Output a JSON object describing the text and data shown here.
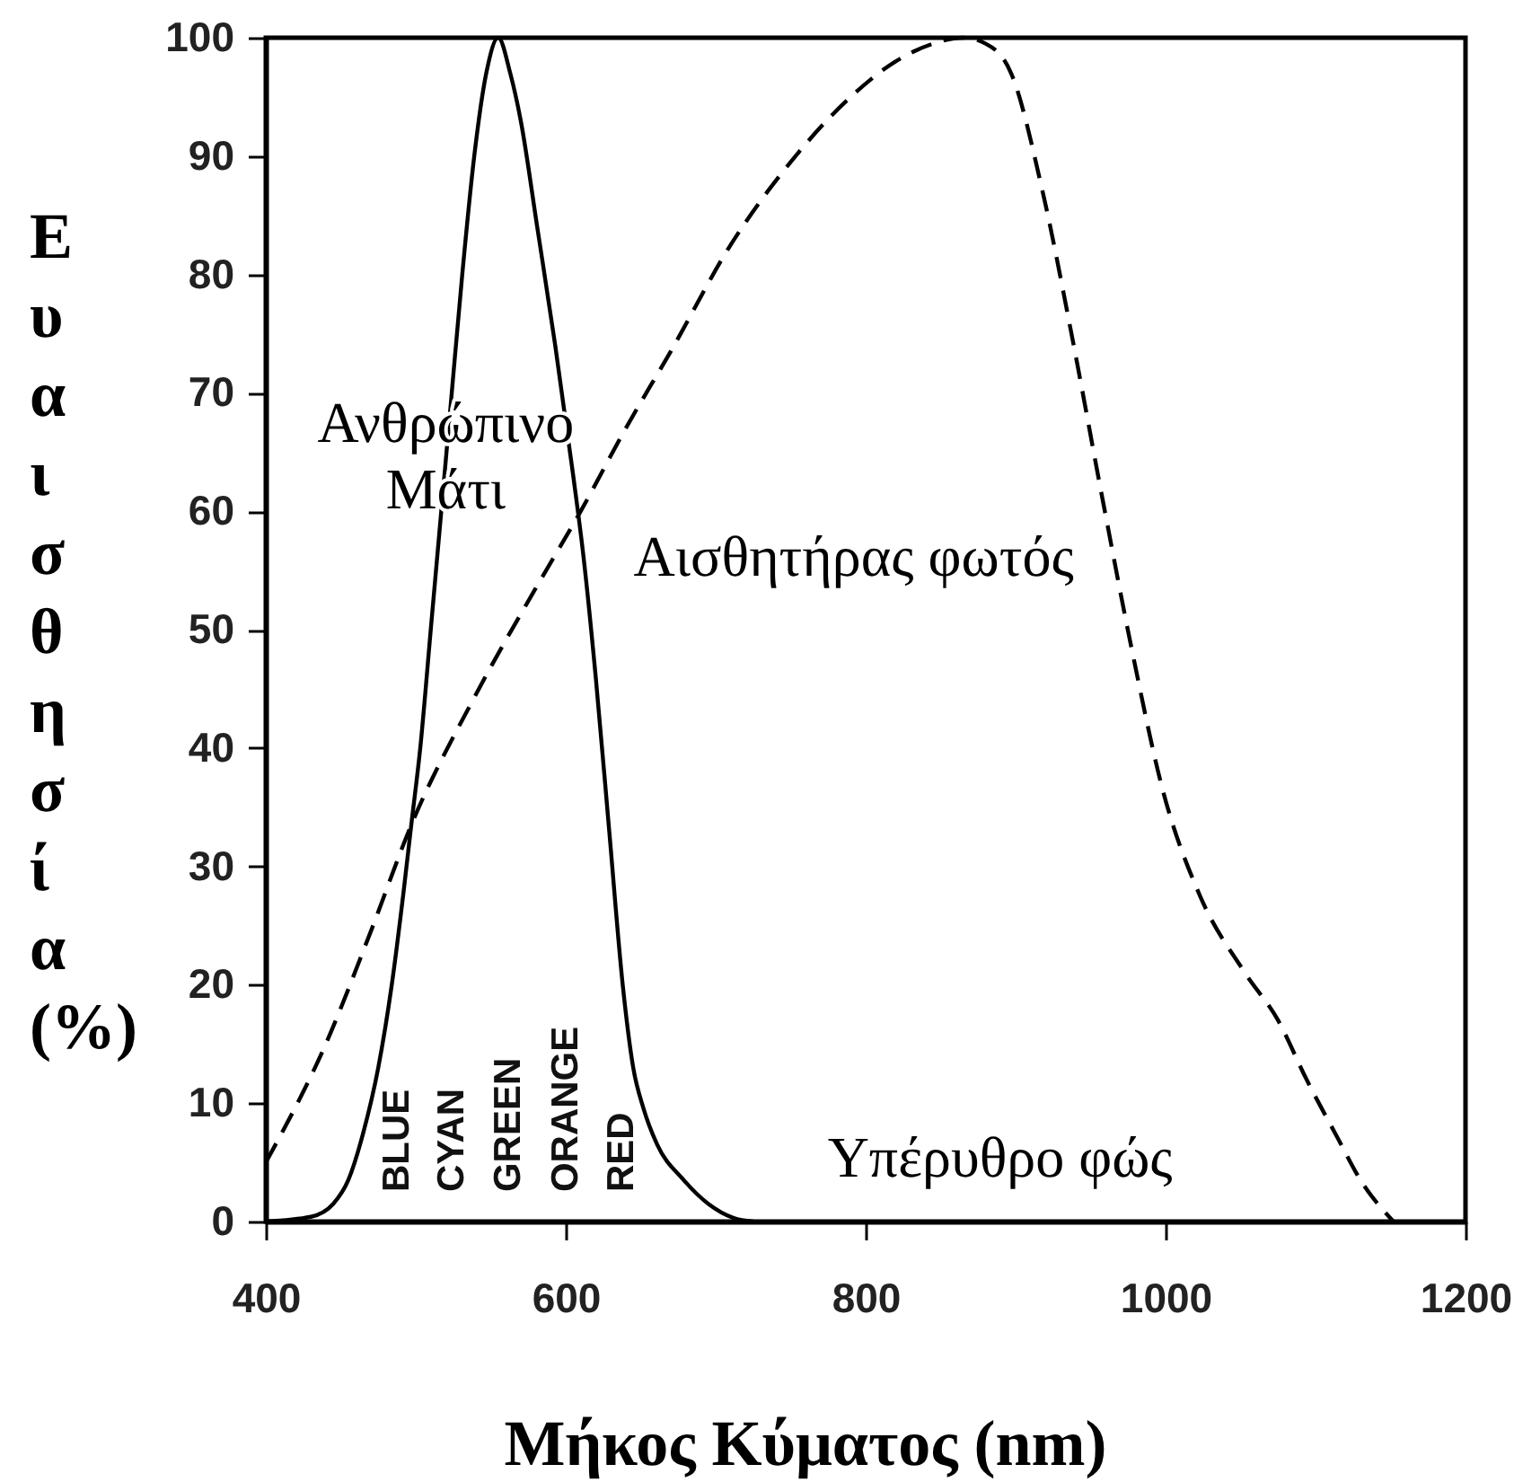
{
  "chart_data": {
    "type": "line",
    "xlabel": "Μήκος Κύματος (nm)",
    "ylabel": "Ευαισθησία (%)",
    "xlim": [
      400,
      1200
    ],
    "xticks": [
      400,
      600,
      800,
      1000,
      1200
    ],
    "ylim": [
      0,
      100
    ],
    "yticks": [
      0,
      10,
      20,
      30,
      40,
      50,
      60,
      70,
      80,
      90,
      100
    ],
    "grid": false,
    "series": [
      {
        "name": "Ανθρώπινο Μάτι",
        "color": "#000000",
        "line_style": "solid",
        "x": [
          400,
          430,
          445,
          455,
          465,
          475,
          484,
          492,
          497,
          503,
          510,
          517,
          524,
          531,
          539,
          547,
          555,
          563,
          570,
          581,
          593,
          605,
          612,
          620,
          629,
          638,
          645,
          652,
          661,
          678,
          695,
          712,
          725
        ],
        "values": [
          0,
          0.4,
          1.5,
          3.5,
          7.5,
          13,
          20,
          28,
          33.5,
          40,
          50,
          60,
          70,
          80,
          90,
          97,
          100,
          97,
          93,
          84,
          74,
          63,
          56,
          46,
          33,
          20,
          13,
          9.5,
          6.5,
          3.6,
          1.5,
          0.3,
          0
        ]
      },
      {
        "name": "Αισθητήρας φωτός",
        "color": "#000000",
        "line_style": "dashed",
        "x": [
          400,
          440,
          470,
          497,
          540,
          580,
          610,
          640,
          670,
          710,
          750,
          790,
          820,
          845,
          865,
          880,
          897,
          918,
          938,
          958,
          978,
          998,
          1023,
          1053,
          1075,
          1094,
          1115,
          1130,
          1152
        ],
        "values": [
          5,
          15,
          24.5,
          33.5,
          44.5,
          53.5,
          60,
          67,
          73.5,
          82.5,
          89.5,
          95,
          98,
          99.5,
          100,
          99.5,
          97,
          87,
          74.5,
          61,
          48,
          36.5,
          27.5,
          21,
          17,
          12,
          7,
          3.5,
          0
        ]
      }
    ],
    "annotations": [
      "BLUE",
      "CYAN",
      "GREEN",
      "ORANGE",
      "RED",
      "Υπέρυθρο φώς"
    ]
  }
}
